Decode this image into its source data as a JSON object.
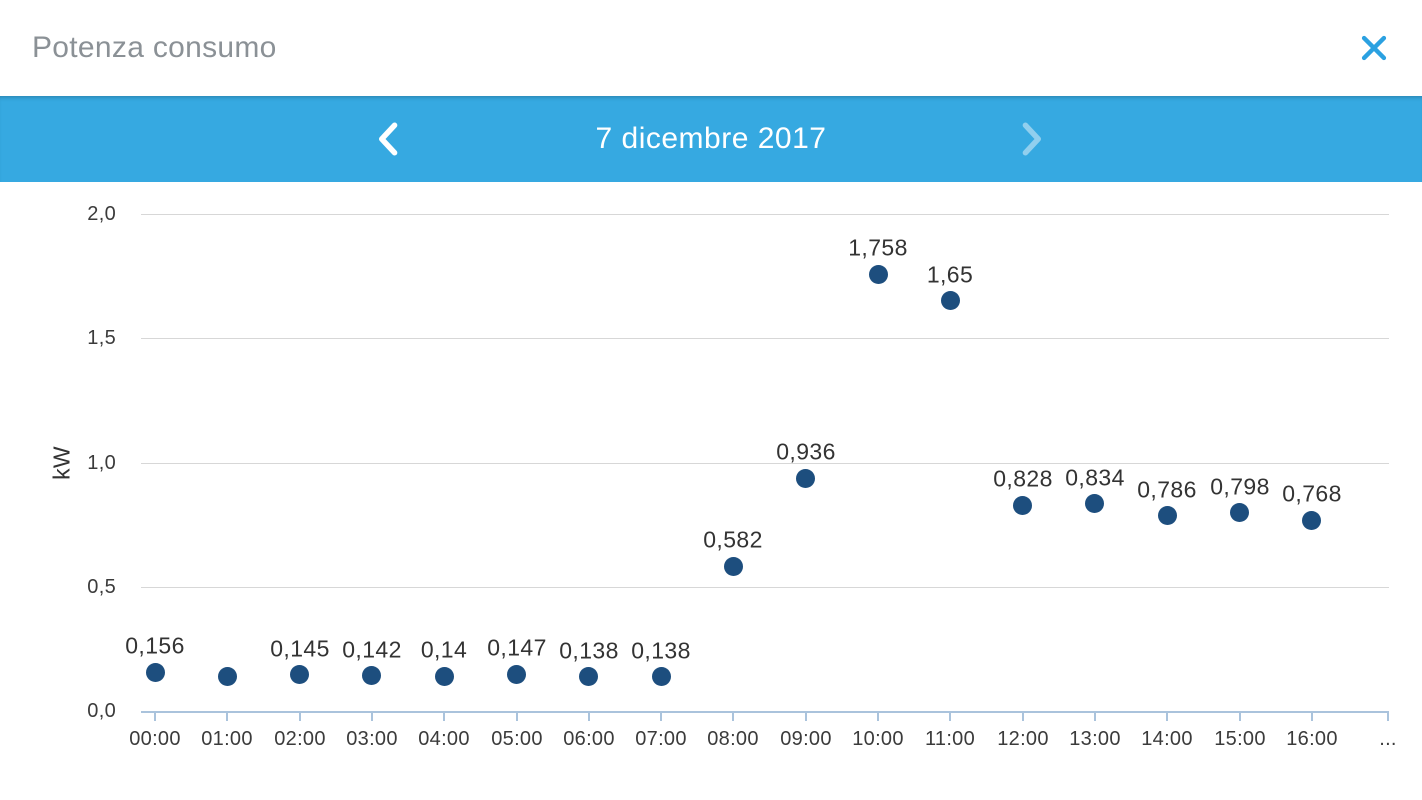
{
  "header": {
    "title": "Potenza consumo",
    "close_icon": "✕"
  },
  "date_nav": {
    "date_label": "7 dicembre 2017",
    "prev_icon": "‹",
    "next_icon": "›",
    "next_disabled": true
  },
  "colors": {
    "accent_blue": "#36a9e1",
    "point_blue": "#1d4e7e",
    "axis_blue": "#aac3dc",
    "grid_gray": "#d7d7d7",
    "title_gray": "#8b9196",
    "text_dark": "#3b3b3b",
    "date_text": "#ffffff"
  },
  "chart_data": {
    "type": "scatter",
    "title": "Potenza consumo",
    "ylabel": "kW",
    "ylim": [
      0,
      2
    ],
    "ytick_labels": [
      "0,0",
      "0,5",
      "1,0",
      "1,5",
      "2,0"
    ],
    "ytick_values": [
      0,
      0.5,
      1,
      1.5,
      2
    ],
    "x_categories": [
      "00:00",
      "01:00",
      "02:00",
      "03:00",
      "04:00",
      "05:00",
      "06:00",
      "07:00",
      "08:00",
      "09:00",
      "10:00",
      "11:00",
      "12:00",
      "13:00",
      "14:00",
      "15:00",
      "16:00"
    ],
    "x_overflow_label": "...",
    "grid": true,
    "legend": false,
    "series": [
      {
        "name": "Potenza consumo",
        "values": [
          0.156,
          0.14,
          0.145,
          0.142,
          0.14,
          0.147,
          0.138,
          0.138,
          0.582,
          0.936,
          1.758,
          1.65,
          0.828,
          0.834,
          0.786,
          0.798,
          0.768
        ],
        "point_labels": [
          "0,156",
          "",
          "0,145",
          "0,142",
          "0,14",
          "0,147",
          "0,138",
          "0,138",
          "0,582",
          "0,936",
          "1,758",
          "1,65",
          "0,828",
          "0,834",
          "0,786",
          "0,798",
          "0,768"
        ]
      }
    ]
  }
}
